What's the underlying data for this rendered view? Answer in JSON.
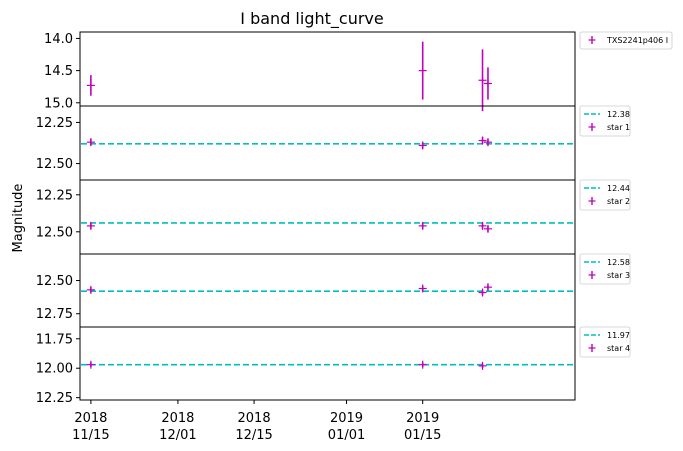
{
  "chart_data": {
    "type": "scatter",
    "title": "I band light_curve",
    "ylabel": "Magnitude",
    "xlabel": "",
    "x_axis": {
      "type": "date",
      "range": [
        "2018-11-13",
        "2019-02-12"
      ],
      "ticks": [
        {
          "date": "2018-11-15",
          "line1": "2018",
          "line2": "11/15"
        },
        {
          "date": "2018-12-01",
          "line1": "2018",
          "line2": "12/01"
        },
        {
          "date": "2018-12-15",
          "line1": "2018",
          "line2": "12/15"
        },
        {
          "date": "2019-01-01",
          "line1": "2019",
          "line2": "01/01"
        },
        {
          "date": "2019-01-15",
          "line1": "2019",
          "line2": "01/15"
        }
      ]
    },
    "marker_color": "#bf00bf",
    "ref_line_color": "#00bfbf",
    "panels": [
      {
        "ylim": [
          15.05,
          13.9
        ],
        "yticks": [
          "14.0",
          "14.5",
          "15.0"
        ],
        "legend": [
          {
            "kind": "marker",
            "label": "TXS2241p406 I"
          }
        ],
        "points": [
          {
            "x": "2018-11-15",
            "y": 14.73,
            "yerr": 0.16
          },
          {
            "x": "2019-01-15",
            "y": 14.5,
            "yerr": 0.45
          },
          {
            "x": "2019-01-26",
            "y": 14.65,
            "yerr": 0.48
          },
          {
            "x": "2019-01-27",
            "y": 14.7,
            "yerr": 0.25
          }
        ]
      },
      {
        "ylim": [
          12.6,
          12.15
        ],
        "yticks": [
          "12.25",
          "12.50"
        ],
        "ref": 12.38,
        "legend": [
          {
            "kind": "line",
            "label": "12.38"
          },
          {
            "kind": "marker",
            "label": "star 1"
          }
        ],
        "points": [
          {
            "x": "2018-11-15",
            "y": 12.37,
            "yerr": 0.02
          },
          {
            "x": "2019-01-15",
            "y": 12.39,
            "yerr": 0.02
          },
          {
            "x": "2019-01-26",
            "y": 12.36,
            "yerr": 0.02
          },
          {
            "x": "2019-01-27",
            "y": 12.37,
            "yerr": 0.02
          }
        ]
      },
      {
        "ylim": [
          12.65,
          12.15
        ],
        "yticks": [
          "12.25",
          "12.50"
        ],
        "ref": 12.44,
        "legend": [
          {
            "kind": "line",
            "label": "12.44"
          },
          {
            "kind": "marker",
            "label": "star 2"
          }
        ],
        "points": [
          {
            "x": "2018-11-15",
            "y": 12.46,
            "yerr": 0.02
          },
          {
            "x": "2019-01-15",
            "y": 12.46,
            "yerr": 0.02
          },
          {
            "x": "2019-01-26",
            "y": 12.46,
            "yerr": 0.02
          },
          {
            "x": "2019-01-27",
            "y": 12.48,
            "yerr": 0.02
          }
        ]
      },
      {
        "ylim": [
          12.85,
          12.3
        ],
        "yticks": [
          "12.50",
          "12.75"
        ],
        "ref": 12.58,
        "legend": [
          {
            "kind": "line",
            "label": "12.58"
          },
          {
            "kind": "marker",
            "label": "star 3"
          }
        ],
        "points": [
          {
            "x": "2018-11-15",
            "y": 12.57,
            "yerr": 0.02
          },
          {
            "x": "2019-01-15",
            "y": 12.56,
            "yerr": 0.02
          },
          {
            "x": "2019-01-26",
            "y": 12.59,
            "yerr": 0.02
          },
          {
            "x": "2019-01-27",
            "y": 12.55,
            "yerr": 0.02
          }
        ]
      },
      {
        "ylim": [
          12.27,
          11.65
        ],
        "yticks": [
          "11.75",
          "12.00",
          "12.25"
        ],
        "ref": 11.97,
        "legend": [
          {
            "kind": "line",
            "label": "11.97"
          },
          {
            "kind": "marker",
            "label": "star 4"
          }
        ],
        "points": [
          {
            "x": "2018-11-15",
            "y": 11.97,
            "yerr": 0.02
          },
          {
            "x": "2019-01-15",
            "y": 11.97,
            "yerr": 0.02
          },
          {
            "x": "2019-01-26",
            "y": 11.98,
            "yerr": 0.02
          }
        ]
      }
    ]
  }
}
